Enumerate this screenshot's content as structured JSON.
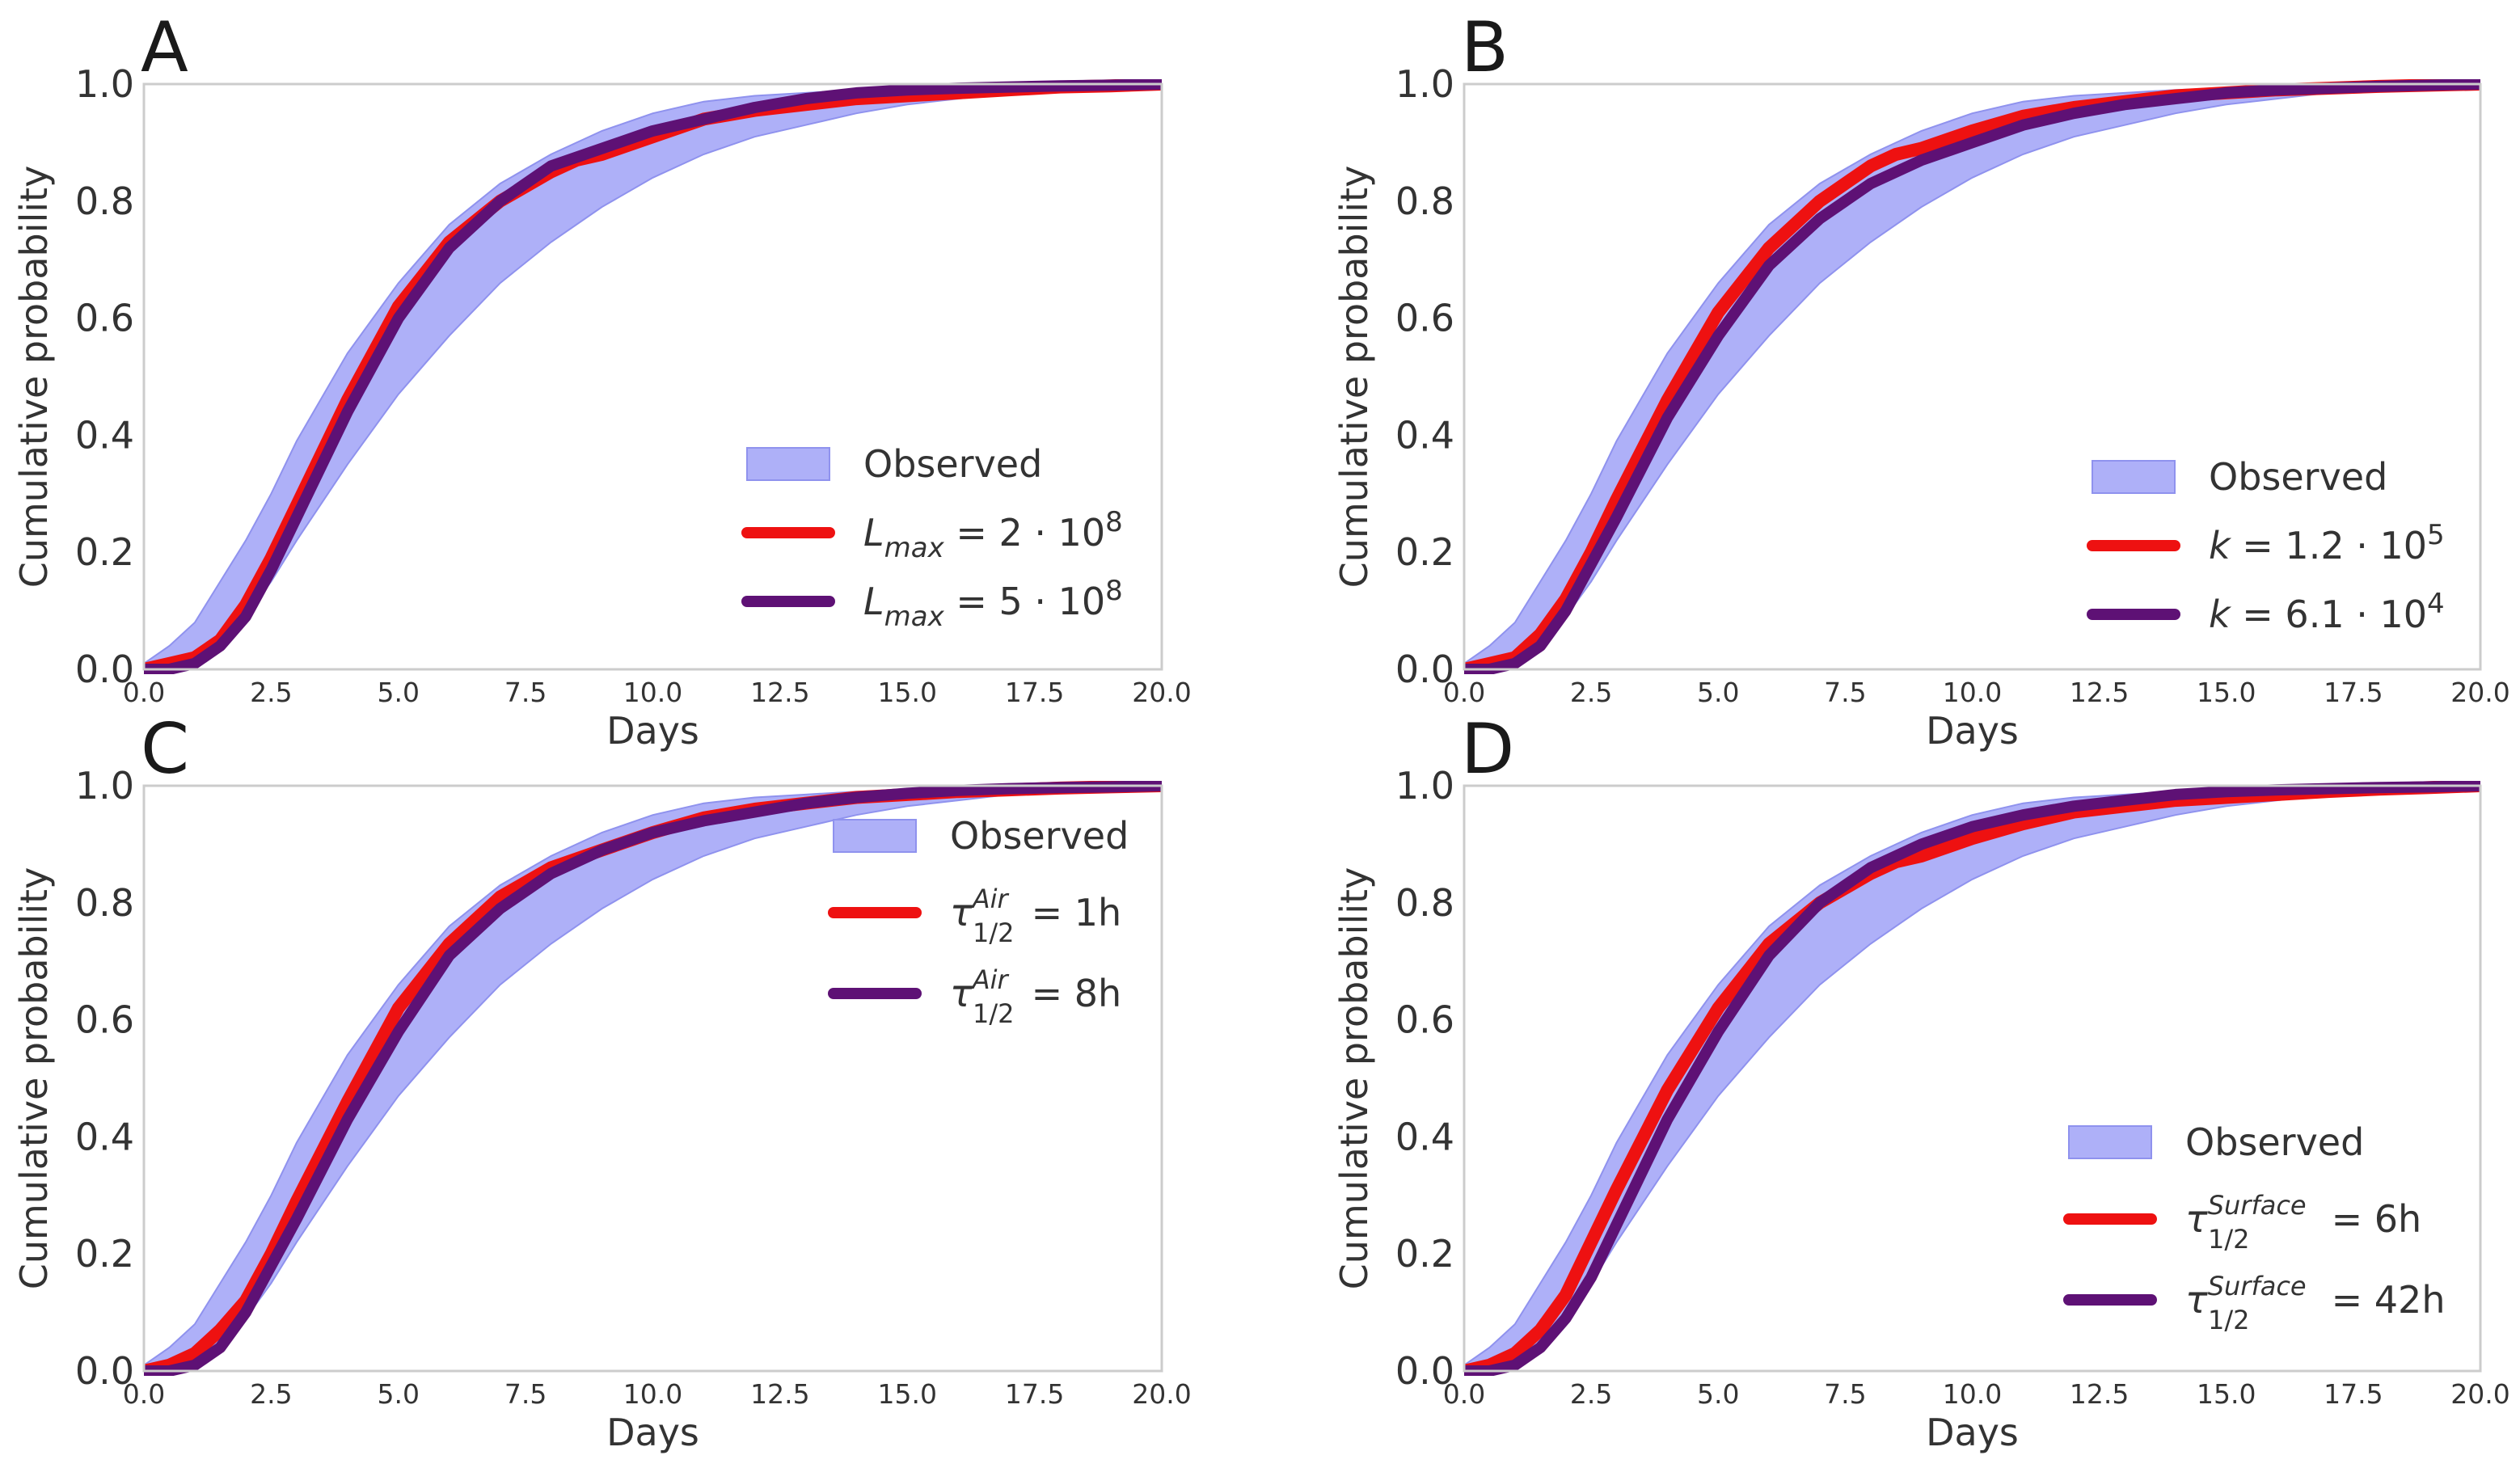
{
  "figure": {
    "colors": {
      "band_fill": "#aeb0f8",
      "band_edge": "#8f92ee",
      "red": "#ee1111",
      "purple": "#5e1175",
      "frame": "#cccccc",
      "text": "#333333"
    }
  },
  "chart_data": [
    {
      "panel": "A",
      "type": "area",
      "xlabel": "Days",
      "ylabel": "Cumulative probability",
      "xlim": [
        0,
        20
      ],
      "ylim": [
        0,
        1
      ],
      "xticks": [
        "0.0",
        "2.5",
        "5.0",
        "7.5",
        "10.0",
        "12.5",
        "15.0",
        "17.5",
        "20.0"
      ],
      "yticks": [
        "0.0",
        "0.2",
        "0.4",
        "0.6",
        "0.8",
        "1.0"
      ],
      "legend_position": "lower-right",
      "observed": {
        "name": "Observed",
        "x": [
          0,
          0.5,
          1,
          1.5,
          2,
          2.5,
          3,
          4,
          5,
          6,
          7,
          8,
          9,
          10,
          11,
          12,
          13,
          14,
          15,
          16,
          17,
          18,
          19,
          20
        ],
        "upper": [
          0.01,
          0.04,
          0.08,
          0.15,
          0.22,
          0.3,
          0.39,
          0.54,
          0.66,
          0.76,
          0.83,
          0.88,
          0.92,
          0.95,
          0.97,
          0.98,
          0.985,
          0.99,
          0.993,
          0.995,
          0.997,
          0.998,
          0.999,
          1.0
        ],
        "lower": [
          0.0,
          0.0,
          0.01,
          0.04,
          0.09,
          0.15,
          0.22,
          0.35,
          0.47,
          0.57,
          0.66,
          0.73,
          0.79,
          0.84,
          0.88,
          0.91,
          0.93,
          0.95,
          0.965,
          0.975,
          0.985,
          0.99,
          0.995,
          1.0
        ]
      },
      "series": [
        {
          "name": "L_max = 2·10^8",
          "color_key": "red",
          "x": [
            0,
            0.5,
            1,
            1.5,
            2,
            2.5,
            3,
            4,
            5,
            6,
            7,
            8,
            8.5,
            9,
            10,
            11,
            12,
            13,
            14,
            15,
            16,
            17,
            18,
            19,
            20
          ],
          "y": [
            0.0,
            0.01,
            0.02,
            0.05,
            0.11,
            0.19,
            0.28,
            0.46,
            0.62,
            0.73,
            0.8,
            0.85,
            0.87,
            0.88,
            0.91,
            0.94,
            0.955,
            0.965,
            0.975,
            0.98,
            0.985,
            0.99,
            0.995,
            0.997,
            1.0
          ]
        },
        {
          "name": "L_max = 5·10^8",
          "color_key": "purple",
          "x": [
            0,
            0.5,
            1,
            1.5,
            2,
            2.5,
            3,
            4,
            5,
            6,
            7,
            8,
            9,
            10,
            11,
            12,
            13,
            14,
            15,
            16,
            17,
            18,
            19,
            20
          ],
          "y": [
            0.0,
            0.0,
            0.01,
            0.04,
            0.09,
            0.17,
            0.26,
            0.44,
            0.6,
            0.72,
            0.8,
            0.86,
            0.89,
            0.92,
            0.94,
            0.96,
            0.975,
            0.985,
            0.99,
            0.993,
            0.995,
            0.997,
            0.998,
            1.0
          ]
        }
      ],
      "legend": {
        "observed": "Observed",
        "s1": {
          "sym": "L",
          "sub": "max",
          "rhs": "= 2 · 10",
          "sup": "8",
          "unit": ""
        },
        "s2": {
          "sym": "L",
          "sub": "max",
          "rhs": "= 5 · 10",
          "sup": "8",
          "unit": ""
        }
      }
    },
    {
      "panel": "B",
      "type": "area",
      "xlabel": "Days",
      "ylabel": "Cumulative probability",
      "xlim": [
        0,
        20
      ],
      "ylim": [
        0,
        1
      ],
      "xticks": [
        "0.0",
        "2.5",
        "5.0",
        "7.5",
        "10.0",
        "12.5",
        "15.0",
        "17.5",
        "20.0"
      ],
      "yticks": [
        "0.0",
        "0.2",
        "0.4",
        "0.6",
        "0.8",
        "1.0"
      ],
      "legend_position": "lower-right",
      "observed": {
        "name": "Observed",
        "x": [
          0,
          0.5,
          1,
          1.5,
          2,
          2.5,
          3,
          4,
          5,
          6,
          7,
          8,
          9,
          10,
          11,
          12,
          13,
          14,
          15,
          16,
          17,
          18,
          19,
          20
        ],
        "upper": [
          0.01,
          0.04,
          0.08,
          0.15,
          0.22,
          0.3,
          0.39,
          0.54,
          0.66,
          0.76,
          0.83,
          0.88,
          0.92,
          0.95,
          0.97,
          0.98,
          0.985,
          0.99,
          0.993,
          0.995,
          0.997,
          0.998,
          0.999,
          1.0
        ],
        "lower": [
          0.0,
          0.0,
          0.01,
          0.04,
          0.09,
          0.15,
          0.22,
          0.35,
          0.47,
          0.57,
          0.66,
          0.73,
          0.79,
          0.84,
          0.88,
          0.91,
          0.93,
          0.95,
          0.965,
          0.975,
          0.985,
          0.99,
          0.995,
          1.0
        ]
      },
      "series": [
        {
          "name": "k = 1.2·10^5",
          "color_key": "red",
          "x": [
            0,
            0.5,
            1,
            1.5,
            2,
            2.5,
            3,
            4,
            5,
            6,
            7,
            8,
            8.5,
            9,
            10,
            11,
            12,
            13,
            14,
            15,
            16,
            17,
            18,
            19,
            20
          ],
          "y": [
            0.0,
            0.01,
            0.02,
            0.06,
            0.12,
            0.2,
            0.29,
            0.46,
            0.61,
            0.72,
            0.8,
            0.86,
            0.88,
            0.89,
            0.92,
            0.945,
            0.96,
            0.97,
            0.98,
            0.985,
            0.99,
            0.993,
            0.996,
            0.998,
            1.0
          ]
        },
        {
          "name": "k = 6.1·10^4",
          "color_key": "purple",
          "x": [
            0,
            0.5,
            1,
            1.5,
            2,
            2.5,
            3,
            4,
            5,
            6,
            7,
            8,
            9,
            10,
            11,
            12,
            13,
            14,
            15,
            16,
            17,
            18,
            19,
            20
          ],
          "y": [
            0.0,
            0.0,
            0.01,
            0.04,
            0.1,
            0.18,
            0.26,
            0.43,
            0.57,
            0.69,
            0.77,
            0.83,
            0.87,
            0.9,
            0.93,
            0.95,
            0.965,
            0.975,
            0.985,
            0.99,
            0.993,
            0.996,
            0.998,
            1.0
          ]
        }
      ],
      "legend": {
        "observed": "Observed",
        "s1": {
          "sym": "k",
          "sub": "",
          "rhs": "= 1.2 · 10",
          "sup": "5",
          "unit": ""
        },
        "s2": {
          "sym": "k",
          "sub": "",
          "rhs": "= 6.1 · 10",
          "sup": "4",
          "unit": ""
        }
      }
    },
    {
      "panel": "C",
      "type": "area",
      "xlabel": "Days",
      "ylabel": "Cumulative probability",
      "xlim": [
        0,
        20
      ],
      "ylim": [
        0,
        1
      ],
      "xticks": [
        "0.0",
        "2.5",
        "5.0",
        "7.5",
        "10.0",
        "12.5",
        "15.0",
        "17.5",
        "20.0"
      ],
      "yticks": [
        "0.0",
        "0.2",
        "0.4",
        "0.6",
        "0.8",
        "1.0"
      ],
      "legend_position": "upper-right",
      "observed": {
        "name": "Observed",
        "x": [
          0,
          0.5,
          1,
          1.5,
          2,
          2.5,
          3,
          4,
          5,
          6,
          7,
          8,
          9,
          10,
          11,
          12,
          13,
          14,
          15,
          16,
          17,
          18,
          19,
          20
        ],
        "upper": [
          0.01,
          0.04,
          0.08,
          0.15,
          0.22,
          0.3,
          0.39,
          0.54,
          0.66,
          0.76,
          0.83,
          0.88,
          0.92,
          0.95,
          0.97,
          0.98,
          0.985,
          0.99,
          0.993,
          0.995,
          0.997,
          0.998,
          0.999,
          1.0
        ],
        "lower": [
          0.0,
          0.0,
          0.01,
          0.04,
          0.09,
          0.15,
          0.22,
          0.35,
          0.47,
          0.57,
          0.66,
          0.73,
          0.79,
          0.84,
          0.88,
          0.91,
          0.93,
          0.95,
          0.965,
          0.975,
          0.985,
          0.99,
          0.995,
          1.0
        ]
      },
      "series": [
        {
          "name": "τ_1/2^Air = 1h",
          "color_key": "red",
          "x": [
            0,
            0.5,
            1,
            1.5,
            2,
            2.5,
            3,
            4,
            5,
            6,
            7,
            8,
            9,
            10,
            11,
            12,
            13,
            14,
            15,
            16,
            17,
            18,
            19,
            20
          ],
          "y": [
            0.0,
            0.01,
            0.03,
            0.07,
            0.12,
            0.2,
            0.29,
            0.46,
            0.62,
            0.73,
            0.81,
            0.86,
            0.89,
            0.92,
            0.945,
            0.96,
            0.97,
            0.98,
            0.985,
            0.99,
            0.993,
            0.996,
            0.998,
            1.0
          ]
        },
        {
          "name": "τ_1/2^Air = 8h",
          "color_key": "purple",
          "x": [
            0,
            0.5,
            1,
            1.5,
            2,
            2.5,
            3,
            4,
            5,
            6,
            7,
            8,
            9,
            10,
            11,
            12,
            13,
            14,
            15,
            16,
            17,
            18,
            19,
            20
          ],
          "y": [
            0.0,
            0.0,
            0.01,
            0.04,
            0.1,
            0.18,
            0.26,
            0.43,
            0.58,
            0.71,
            0.79,
            0.85,
            0.89,
            0.92,
            0.94,
            0.955,
            0.97,
            0.98,
            0.987,
            0.992,
            0.995,
            0.997,
            0.998,
            1.0
          ]
        }
      ],
      "legend": {
        "observed": "Observed",
        "s1": {
          "sym": "τ",
          "sub": "1/2",
          "sup2": "Air",
          "rhs": "= 1h"
        },
        "s2": {
          "sym": "τ",
          "sub": "1/2",
          "sup2": "Air",
          "rhs": "= 8h"
        }
      }
    },
    {
      "panel": "D",
      "type": "area",
      "xlabel": "Days",
      "ylabel": "Cumulative probability",
      "xlim": [
        0,
        20
      ],
      "ylim": [
        0,
        1
      ],
      "xticks": [
        "0.0",
        "2.5",
        "5.0",
        "7.5",
        "10.0",
        "12.5",
        "15.0",
        "17.5",
        "20.0"
      ],
      "yticks": [
        "0.0",
        "0.2",
        "0.4",
        "0.6",
        "0.8",
        "1.0"
      ],
      "legend_position": "lower-right",
      "observed": {
        "name": "Observed",
        "x": [
          0,
          0.5,
          1,
          1.5,
          2,
          2.5,
          3,
          4,
          5,
          6,
          7,
          8,
          9,
          10,
          11,
          12,
          13,
          14,
          15,
          16,
          17,
          18,
          19,
          20
        ],
        "upper": [
          0.01,
          0.04,
          0.08,
          0.15,
          0.22,
          0.3,
          0.39,
          0.54,
          0.66,
          0.76,
          0.83,
          0.88,
          0.92,
          0.95,
          0.97,
          0.98,
          0.985,
          0.99,
          0.993,
          0.995,
          0.997,
          0.998,
          0.999,
          1.0
        ],
        "lower": [
          0.0,
          0.0,
          0.01,
          0.04,
          0.09,
          0.15,
          0.22,
          0.35,
          0.47,
          0.57,
          0.66,
          0.73,
          0.79,
          0.84,
          0.88,
          0.91,
          0.93,
          0.95,
          0.965,
          0.975,
          0.985,
          0.99,
          0.995,
          1.0
        ]
      },
      "series": [
        {
          "name": "τ_1/2^Surface = 6h",
          "color_key": "red",
          "x": [
            0,
            0.5,
            1,
            1.5,
            2,
            2.5,
            3,
            4,
            5,
            6,
            7,
            8,
            8.5,
            9,
            10,
            11,
            12,
            13,
            14,
            15,
            16,
            17,
            18,
            19,
            20
          ],
          "y": [
            0.0,
            0.01,
            0.03,
            0.07,
            0.13,
            0.22,
            0.31,
            0.48,
            0.62,
            0.73,
            0.8,
            0.85,
            0.87,
            0.88,
            0.91,
            0.935,
            0.955,
            0.965,
            0.975,
            0.98,
            0.985,
            0.99,
            0.994,
            0.997,
            1.0
          ]
        },
        {
          "name": "τ_1/2^Surface = 42h",
          "color_key": "purple",
          "x": [
            0,
            0.5,
            1,
            1.5,
            2,
            2.5,
            3,
            4,
            5,
            6,
            7,
            8,
            9,
            10,
            11,
            12,
            13,
            14,
            15,
            16,
            17,
            18,
            19,
            20
          ],
          "y": [
            0.0,
            0.0,
            0.01,
            0.04,
            0.09,
            0.16,
            0.25,
            0.43,
            0.58,
            0.71,
            0.8,
            0.86,
            0.9,
            0.93,
            0.95,
            0.965,
            0.975,
            0.985,
            0.99,
            0.993,
            0.995,
            0.997,
            0.998,
            1.0
          ]
        }
      ],
      "legend": {
        "observed": "Observed",
        "s1": {
          "sym": "τ",
          "sub": "1/2",
          "sup2": "Surface",
          "rhs": "= 6h"
        },
        "s2": {
          "sym": "τ",
          "sub": "1/2",
          "sup2": "Surface",
          "rhs": "= 42h"
        }
      }
    }
  ]
}
